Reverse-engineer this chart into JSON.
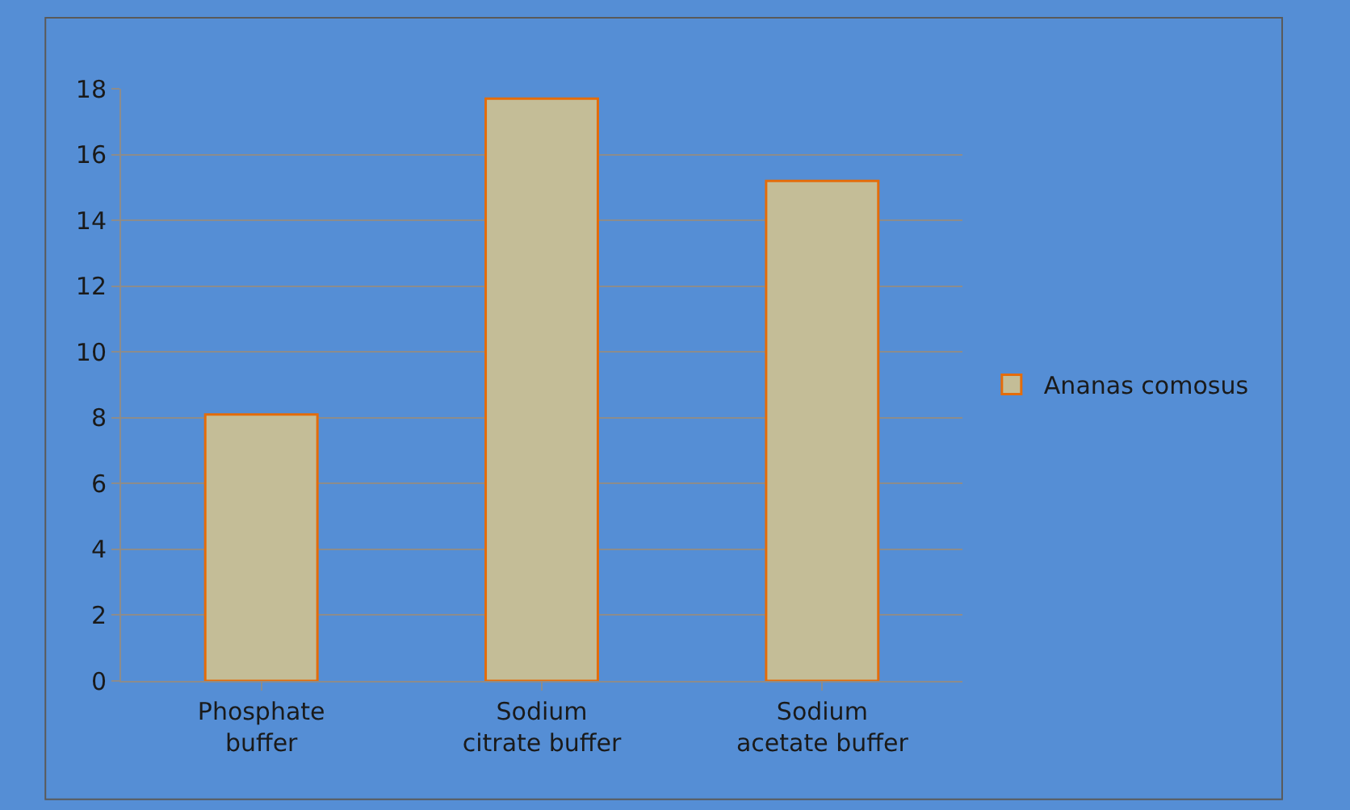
{
  "chart_data": {
    "type": "bar",
    "categories": [
      "Phosphate buffer",
      "Sodium citrate buffer",
      "Sodium acetate buffer"
    ],
    "series": [
      {
        "name": "Ananas comosus",
        "color": "#c4bd97",
        "values": [
          8.1,
          17.7,
          15.2
        ]
      }
    ],
    "ylim": [
      0,
      18
    ],
    "yticks": [
      0,
      2,
      4,
      6,
      8,
      10,
      12,
      14,
      16,
      18
    ],
    "grid": "y",
    "legend": "right"
  }
}
